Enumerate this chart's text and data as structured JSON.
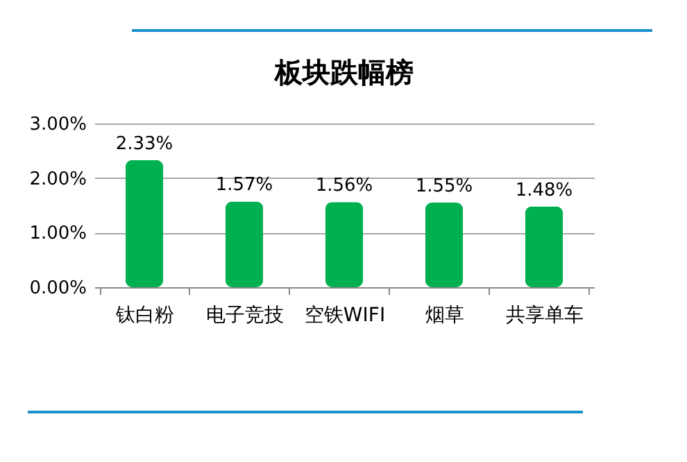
{
  "chart_data": {
    "type": "bar",
    "title": "板块跌幅榜",
    "categories": [
      "钛白粉",
      "电子竞技",
      "空铁WIFI",
      "烟草",
      "共享单车"
    ],
    "values": [
      2.33,
      1.57,
      1.56,
      1.55,
      1.48
    ],
    "value_labels": [
      "2.33%",
      "1.57%",
      "1.56%",
      "1.55%",
      "1.48%"
    ],
    "color": "#00b050",
    "ylim": [
      0,
      3
    ],
    "yticks": [
      {
        "value": 0,
        "label": "0.00%"
      },
      {
        "value": 1,
        "label": "1.00%"
      },
      {
        "value": 2,
        "label": "2.00%"
      },
      {
        "value": 3,
        "label": "3.00%"
      }
    ],
    "grid": "y"
  }
}
